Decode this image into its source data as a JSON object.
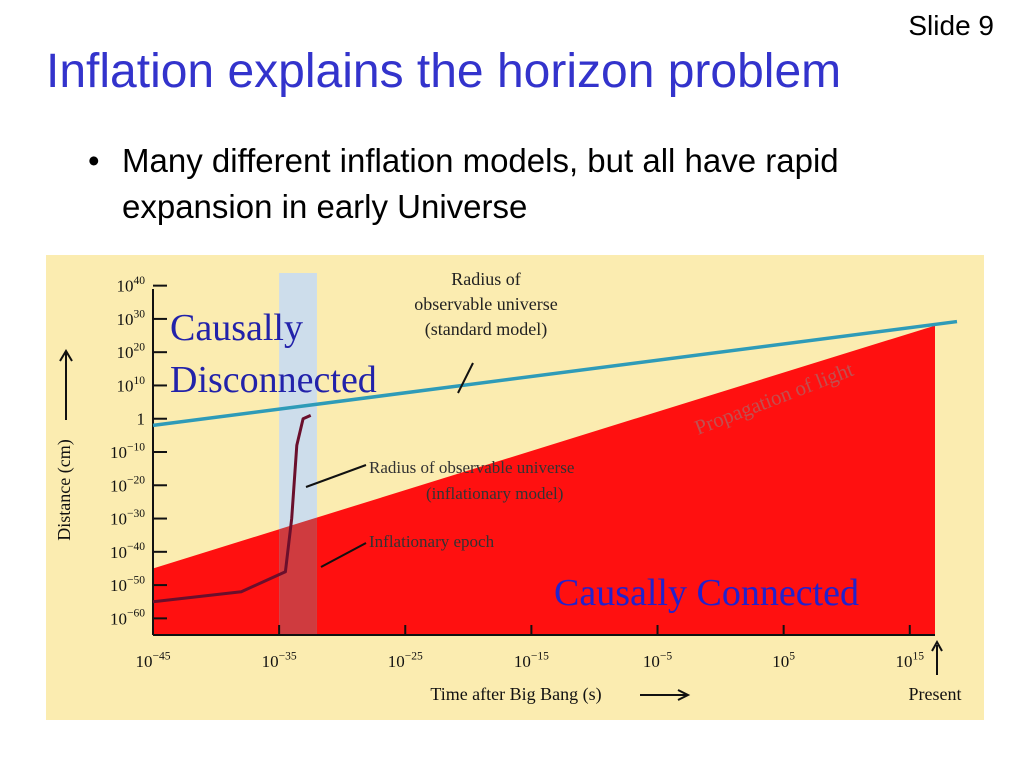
{
  "slide": {
    "number_label": "Slide 9",
    "title": "Inflation explains the horizon problem",
    "bullet_mark": "•",
    "bullet": "Many different inflation models, but all have rapid expansion in early Universe"
  },
  "colors": {
    "title": "#3333cc",
    "background": "#fbecb0",
    "connected_region": "#ff1010",
    "inflation_band": "#c8dcf2",
    "standard_radius_line": "#2e9bb8",
    "inflationary_curve": "#6a0f2c",
    "disconnected_label": "#2222aa",
    "connected_label": "#2222cc",
    "light_label": "#c05050"
  },
  "chart_data": {
    "type": "line",
    "xlabel": "Time after Big Bang (s)",
    "ylabel": "Distance (cm)",
    "x_scale": "log",
    "y_scale": "log",
    "x_ticks": [
      {
        "exp": -45,
        "base": "10",
        "sup": "−45"
      },
      {
        "exp": -35,
        "base": "10",
        "sup": "−35"
      },
      {
        "exp": -25,
        "base": "10",
        "sup": "−25"
      },
      {
        "exp": -15,
        "base": "10",
        "sup": "−15"
      },
      {
        "exp": -5,
        "base": "10",
        "sup": "−5"
      },
      {
        "exp": 5,
        "base": "10",
        "sup": "5"
      },
      {
        "exp": 15,
        "base": "10",
        "sup": "15"
      }
    ],
    "y_ticks": [
      {
        "exp": 40,
        "base": "10",
        "sup": "40"
      },
      {
        "exp": 30,
        "base": "10",
        "sup": "30"
      },
      {
        "exp": 20,
        "base": "10",
        "sup": "20"
      },
      {
        "exp": 10,
        "base": "10",
        "sup": "10"
      },
      {
        "exp": 0,
        "base": "1",
        "sup": ""
      },
      {
        "exp": -10,
        "base": "10",
        "sup": "−10"
      },
      {
        "exp": -20,
        "base": "10",
        "sup": "−20"
      },
      {
        "exp": -30,
        "base": "10",
        "sup": "−30"
      },
      {
        "exp": -40,
        "base": "10",
        "sup": "−40"
      },
      {
        "exp": -50,
        "base": "10",
        "sup": "−50"
      },
      {
        "exp": -60,
        "base": "10",
        "sup": "−60"
      }
    ],
    "x_range_log10": [
      -45,
      17
    ],
    "y_range_log10": [
      -65,
      45
    ],
    "present_log10_t": 17,
    "present_label": "Present",
    "inflation_epoch_log10_t": [
      -35,
      -32
    ],
    "series": [
      {
        "name": "Radius of observable universe (standard model)",
        "points": [
          {
            "log10_t": -45,
            "log10_d": -2
          },
          {
            "log10_t": 17,
            "log10_d": 28
          }
        ]
      },
      {
        "name": "Propagation of light",
        "points": [
          {
            "log10_t": -45,
            "log10_d": -45
          },
          {
            "log10_t": 17,
            "log10_d": 28
          }
        ]
      },
      {
        "name": "Radius of observable universe (inflationary model)",
        "points": [
          {
            "log10_t": -45,
            "log10_d": -55
          },
          {
            "log10_t": -38,
            "log10_d": -52
          },
          {
            "log10_t": -34.5,
            "log10_d": -46
          },
          {
            "log10_t": -34,
            "log10_d": -30
          },
          {
            "log10_t": -33.6,
            "log10_d": -8
          },
          {
            "log10_t": -33.1,
            "log10_d": 0
          },
          {
            "log10_t": -32.5,
            "log10_d": 1
          }
        ]
      }
    ],
    "annotations": {
      "standard_radius": [
        "Radius of",
        "observable universe",
        "(standard model)"
      ],
      "inflationary_radius": [
        "Radius of observable universe",
        "(inflationary model)"
      ],
      "inflationary_epoch": "Inflationary epoch",
      "propagation_of_light": "Propagation of light",
      "disconnected": [
        "Causally",
        "Disconnected"
      ],
      "connected": "Causally Connected"
    }
  }
}
